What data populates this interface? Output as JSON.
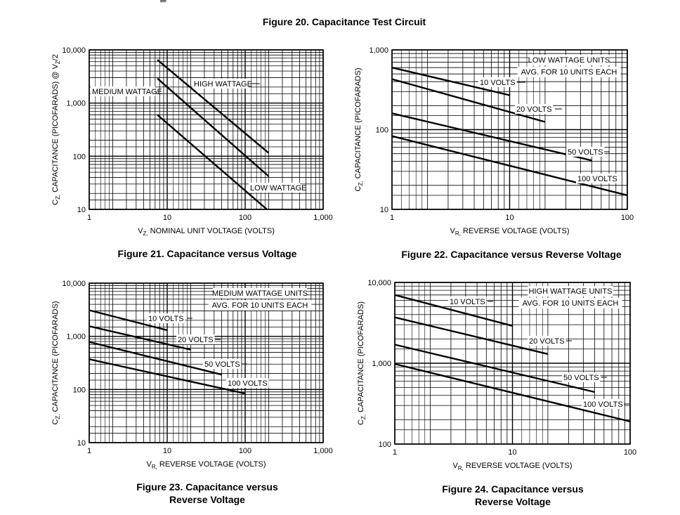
{
  "page": {
    "top_symbol": "═",
    "figure20_title": "Figure 20. Capacitance Test Circuit",
    "fig21": {
      "caption": "Figure 21. Capacitance versus Voltage"
    },
    "fig22": {
      "caption": "Figure 22. Capacitance versus Reverse Voltage"
    },
    "fig23": {
      "caption_line1": "Figure 23. Capacitance versus",
      "caption_line2": "Reverse Voltage"
    },
    "fig24": {
      "caption_line1": "Figure 24. Capacitance versus",
      "caption_line2": "Reverse Voltage"
    }
  },
  "chart_data": [
    {
      "id": "fig21",
      "type": "line",
      "title": "Figure 21. Capacitance versus Voltage",
      "xlabel_main": "V",
      "xlabel_sub": "Z,",
      "xlabel_rest": " NOMINAL UNIT VOLTAGE (VOLTS)",
      "ylabel_main": "C",
      "ylabel_sub": "Z,",
      "ylabel_rest": " CAPACITANCE (PICOFARADS) @ V",
      "ylabel_sub2": "Z",
      "ylabel_tail": "/2",
      "x_scale": "log",
      "y_scale": "log",
      "xlim": [
        1,
        1000
      ],
      "ylim": [
        10,
        10000
      ],
      "xticks": [
        1,
        10,
        100,
        1000
      ],
      "xtick_labels": [
        "1",
        "10",
        "100",
        "1,000"
      ],
      "yticks": [
        10,
        100,
        1000,
        10000
      ],
      "ytick_labels": [
        "10",
        "100",
        "1,000",
        "10,000"
      ],
      "grid": true,
      "annotations": [],
      "series": [
        {
          "name": "HIGH WATTAGE",
          "x": [
            7.5,
            200
          ],
          "y": [
            6500,
            115
          ]
        },
        {
          "name": "MEDIUM WATTAGE",
          "x": [
            7.5,
            200
          ],
          "y": [
            2900,
            42
          ]
        },
        {
          "name": "LOW WATTAGE",
          "x": [
            7.5,
            190
          ],
          "y": [
            600,
            10
          ]
        }
      ]
    },
    {
      "id": "fig22",
      "type": "line",
      "title": "Figure 22. Capacitance versus Reverse Voltage",
      "xlabel_main": "V",
      "xlabel_sub": "R,",
      "xlabel_rest": " REVERSE VOLTAGE (VOLTS)",
      "ylabel_main": "C",
      "ylabel_sub": "Z,",
      "ylabel_rest": " CAPACITANCE (PICOFARADS)",
      "ylabel_sub2": "",
      "ylabel_tail": "",
      "x_scale": "log",
      "y_scale": "log",
      "xlim": [
        1,
        100
      ],
      "ylim": [
        10,
        1000
      ],
      "xticks": [
        1,
        10,
        100
      ],
      "xtick_labels": [
        "1",
        "10",
        "100"
      ],
      "yticks": [
        10,
        100,
        1000
      ],
      "ytick_labels": [
        "10",
        "100",
        "1,000"
      ],
      "grid": true,
      "annotations": [
        "LOW WATTAGE UNITS",
        "AVG. FOR 10 UNITS EACH"
      ],
      "series": [
        {
          "name": "10 VOLTS",
          "x": [
            1,
            10
          ],
          "y": [
            600,
            270
          ]
        },
        {
          "name": "20 VOLTS",
          "x": [
            1,
            20
          ],
          "y": [
            430,
            125
          ]
        },
        {
          "name": "50 VOLTS",
          "x": [
            1,
            50
          ],
          "y": [
            160,
            41
          ]
        },
        {
          "name": "100 VOLTS",
          "x": [
            1,
            100
          ],
          "y": [
            83,
            15
          ]
        }
      ]
    },
    {
      "id": "fig23",
      "type": "line",
      "title": "Figure 23. Capacitance versus Reverse Voltage",
      "xlabel_main": "V",
      "xlabel_sub": "R,",
      "xlabel_rest": " REVERSE VOLTAGE (VOLTS)",
      "ylabel_main": "C",
      "ylabel_sub": "Z,",
      "ylabel_rest": " CAPACITANCE (PICOFARADS)",
      "ylabel_sub2": "",
      "ylabel_tail": "",
      "x_scale": "log",
      "y_scale": "log",
      "xlim": [
        1,
        1000
      ],
      "ylim": [
        10,
        10000
      ],
      "xticks": [
        1,
        10,
        100,
        1000
      ],
      "xtick_labels": [
        "1",
        "10",
        "100",
        "1,000"
      ],
      "yticks": [
        10,
        100,
        1000,
        10000
      ],
      "ytick_labels": [
        "10",
        "100",
        "1,000",
        "10,000"
      ],
      "grid": true,
      "annotations": [
        "MEDIUM WATTAGE UNITS",
        "AVG. FOR 10 UNITS EACH"
      ],
      "series": [
        {
          "name": "10 VOLTS",
          "x": [
            1,
            10
          ],
          "y": [
            3100,
            1300
          ]
        },
        {
          "name": "20 VOLTS",
          "x": [
            1,
            20
          ],
          "y": [
            1550,
            560
          ]
        },
        {
          "name": "50 VOLTS",
          "x": [
            1,
            50
          ],
          "y": [
            780,
            190
          ]
        },
        {
          "name": "100 VOLTS",
          "x": [
            1,
            100
          ],
          "y": [
            370,
            84
          ]
        }
      ]
    },
    {
      "id": "fig24",
      "type": "line",
      "title": "Figure 24. Capacitance versus Reverse Voltage",
      "xlabel_main": "V",
      "xlabel_sub": "R,",
      "xlabel_rest": " REVERSE VOLTAGE (VOLTS)",
      "ylabel_main": "C",
      "ylabel_sub": "Z,",
      "ylabel_rest": " CAPACITANCE (PICOFARADS)",
      "ylabel_sub2": "",
      "ylabel_tail": "",
      "x_scale": "log",
      "y_scale": "log",
      "xlim": [
        1,
        100
      ],
      "ylim": [
        100,
        10000
      ],
      "xticks": [
        1,
        10,
        100
      ],
      "xtick_labels": [
        "1",
        "10",
        "100"
      ],
      "yticks": [
        100,
        1000,
        10000
      ],
      "ytick_labels": [
        "100",
        "1,000",
        "10,000"
      ],
      "grid": true,
      "annotations": [
        "HIGH WATTAGE UNITS",
        "AVG. FOR 10 UNITS EACH"
      ],
      "series": [
        {
          "name": "10 VOLTS",
          "x": [
            1,
            10
          ],
          "y": [
            7000,
            2900
          ]
        },
        {
          "name": "20 VOLTS",
          "x": [
            1,
            20
          ],
          "y": [
            3700,
            1300
          ]
        },
        {
          "name": "50 VOLTS",
          "x": [
            1,
            50
          ],
          "y": [
            1700,
            440
          ]
        },
        {
          "name": "100 VOLTS",
          "x": [
            1,
            100
          ],
          "y": [
            980,
            190
          ]
        }
      ]
    }
  ]
}
